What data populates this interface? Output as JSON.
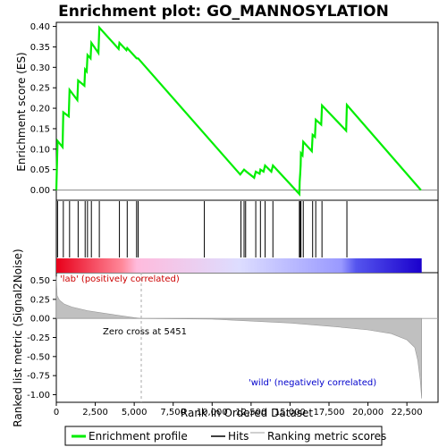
{
  "chart_data": {
    "type": "line",
    "title": "Enrichment plot: GO_MANNOSYLATION",
    "xlabel": "Rank in Ordered Dataset",
    "xlim": [
      0,
      24500
    ],
    "x_ticks": [
      0,
      2500,
      5000,
      7500,
      10000,
      12500,
      15000,
      17500,
      20000,
      22500
    ],
    "x_tick_labels": [
      "0",
      "2,500",
      "5,000",
      "7,500",
      "10,000",
      "12,500",
      "15,000",
      "17,500",
      "20,000",
      "22,500"
    ],
    "es_panel": {
      "ylabel": "Enrichment score (ES)",
      "ylim": [
        -0.025,
        0.41
      ],
      "y_ticks": [
        0.0,
        0.05,
        0.1,
        0.15,
        0.2,
        0.25,
        0.3,
        0.35,
        0.4
      ],
      "y_tick_labels": [
        "0.00",
        "0.05",
        "0.10",
        "0.15",
        "0.20",
        "0.25",
        "0.30",
        "0.35",
        "0.40"
      ],
      "line_color": "#00ee00",
      "points": [
        [
          0,
          0.0
        ],
        [
          80,
          0.12
        ],
        [
          400,
          0.105
        ],
        [
          450,
          0.19
        ],
        [
          800,
          0.18
        ],
        [
          850,
          0.245
        ],
        [
          1350,
          0.22
        ],
        [
          1400,
          0.268
        ],
        [
          1800,
          0.255
        ],
        [
          1850,
          0.295
        ],
        [
          1950,
          0.29
        ],
        [
          2000,
          0.33
        ],
        [
          2200,
          0.322
        ],
        [
          2250,
          0.36
        ],
        [
          2700,
          0.335
        ],
        [
          2760,
          0.397
        ],
        [
          4000,
          0.345
        ],
        [
          4050,
          0.36
        ],
        [
          4500,
          0.342
        ],
        [
          4550,
          0.347
        ],
        [
          5150,
          0.322
        ],
        [
          5250,
          0.322
        ],
        [
          11800,
          0.038
        ],
        [
          12050,
          0.05
        ],
        [
          12200,
          0.045
        ],
        [
          12700,
          0.03
        ],
        [
          12800,
          0.045
        ],
        [
          13050,
          0.04
        ],
        [
          13100,
          0.05
        ],
        [
          13300,
          0.045
        ],
        [
          13400,
          0.06
        ],
        [
          13800,
          0.045
        ],
        [
          13900,
          0.06
        ],
        [
          15600,
          -0.01
        ],
        [
          15620,
          0.02
        ],
        [
          15650,
          0.04
        ],
        [
          15680,
          0.06
        ],
        [
          15700,
          0.09
        ],
        [
          15800,
          0.085
        ],
        [
          15850,
          0.118
        ],
        [
          16400,
          0.095
        ],
        [
          16450,
          0.135
        ],
        [
          16600,
          0.13
        ],
        [
          16650,
          0.172
        ],
        [
          17000,
          0.16
        ],
        [
          17050,
          0.207
        ],
        [
          18600,
          0.145
        ],
        [
          18650,
          0.208
        ],
        [
          23400,
          0.0
        ]
      ]
    },
    "hits_panel": {
      "hit_ranks": [
        80,
        450,
        850,
        1400,
        1850,
        2000,
        2250,
        2760,
        4050,
        4550,
        5150,
        5250,
        9500,
        11850,
        12050,
        12150,
        12800,
        13100,
        13400,
        13900,
        15600,
        15650,
        15700,
        15850,
        16450,
        16650,
        17050,
        18650
      ]
    },
    "metric_panel": {
      "ylabel": "Ranked list metric (Signal2Noise)",
      "ylim": [
        -1.1,
        0.6
      ],
      "y_ticks": [
        -1.0,
        -0.75,
        -0.5,
        -0.25,
        0.0,
        0.25,
        0.5
      ],
      "y_tick_labels": [
        "-1.00",
        "-0.75",
        "-0.50",
        "-0.25",
        "0.00",
        "0.25",
        "0.50"
      ],
      "profile": [
        [
          0,
          0.55
        ],
        [
          50,
          0.3
        ],
        [
          200,
          0.24
        ],
        [
          500,
          0.19
        ],
        [
          1000,
          0.15
        ],
        [
          2000,
          0.1
        ],
        [
          3000,
          0.07
        ],
        [
          4000,
          0.04
        ],
        [
          5000,
          0.01
        ],
        [
          5451,
          0.0
        ],
        [
          10000,
          -0.01
        ],
        [
          12000,
          -0.03
        ],
        [
          15000,
          -0.06
        ],
        [
          18000,
          -0.11
        ],
        [
          20000,
          -0.15
        ],
        [
          21500,
          -0.2
        ],
        [
          22500,
          -0.28
        ],
        [
          23000,
          -0.38
        ],
        [
          23200,
          -0.55
        ],
        [
          23350,
          -0.8
        ],
        [
          23450,
          -1.05
        ]
      ],
      "fill_color": "#c0c0c0"
    },
    "zero_cross_rank": 5451,
    "annotations": {
      "positive": "'lab' (positively correlated)",
      "zero_cross": "Zero cross at 5451",
      "negative": "'wild' (negatively correlated)"
    },
    "annotation_colors": {
      "positive": "#cc0000",
      "zero_cross": "#000000",
      "negative": "#0000cc"
    },
    "gradient_colors": [
      "#e8001a",
      "#ff8899",
      "#ffbbdd",
      "#ddddff",
      "#9999ff",
      "#5555ee",
      "#1a00cc"
    ],
    "legend": {
      "placement": "bottom",
      "items": [
        {
          "label": "Enrichment profile",
          "color": "#00ee00",
          "kind": "thick-line"
        },
        {
          "label": "Hits",
          "color": "#000000",
          "kind": "line"
        },
        {
          "label": "Ranking metric scores",
          "color": "#c0c0c0",
          "kind": "line"
        }
      ]
    }
  }
}
